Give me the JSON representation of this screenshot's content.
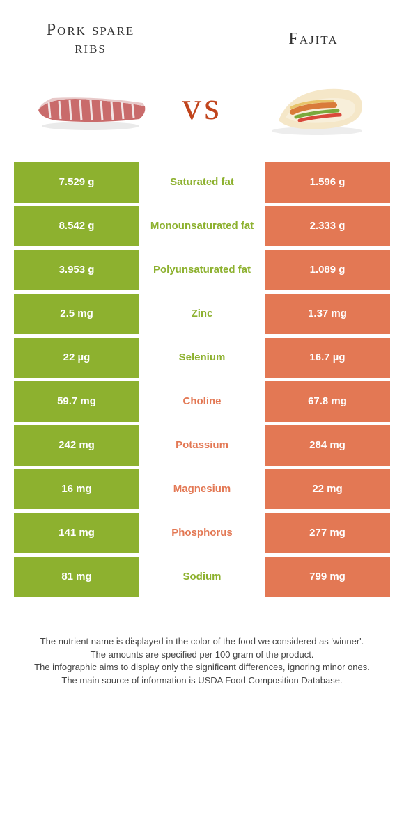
{
  "header": {
    "left_title": "Pork spare ribs",
    "right_title": "Fajita",
    "vs": "vs"
  },
  "colors": {
    "green": "#8db12f",
    "orange": "#e37854",
    "vs_color": "#c1441c",
    "text": "#333333",
    "footer_text": "#444444",
    "white": "#ffffff"
  },
  "rows": [
    {
      "left": "7.529 g",
      "label": "Saturated fat",
      "right": "1.596 g",
      "winner": "green"
    },
    {
      "left": "8.542 g",
      "label": "Monounsaturated fat",
      "right": "2.333 g",
      "winner": "green"
    },
    {
      "left": "3.953 g",
      "label": "Polyunsaturated fat",
      "right": "1.089 g",
      "winner": "green"
    },
    {
      "left": "2.5 mg",
      "label": "Zinc",
      "right": "1.37 mg",
      "winner": "green"
    },
    {
      "left": "22 µg",
      "label": "Selenium",
      "right": "16.7 µg",
      "winner": "green"
    },
    {
      "left": "59.7 mg",
      "label": "Choline",
      "right": "67.8 mg",
      "winner": "orange"
    },
    {
      "left": "242 mg",
      "label": "Potassium",
      "right": "284 mg",
      "winner": "orange"
    },
    {
      "left": "16 mg",
      "label": "Magnesium",
      "right": "22 mg",
      "winner": "orange"
    },
    {
      "left": "141 mg",
      "label": "Phosphorus",
      "right": "277 mg",
      "winner": "orange"
    },
    {
      "left": "81 mg",
      "label": "Sodium",
      "right": "799 mg",
      "winner": "green"
    }
  ],
  "footer": {
    "line1": "The nutrient name is displayed in the color of the food we considered as 'winner'.",
    "line2": "The amounts are specified per 100 gram of the product.",
    "line3": "The infographic aims to display only the significant differences, ignoring minor ones.",
    "line4": "The main source of information is USDA Food Composition Database."
  }
}
